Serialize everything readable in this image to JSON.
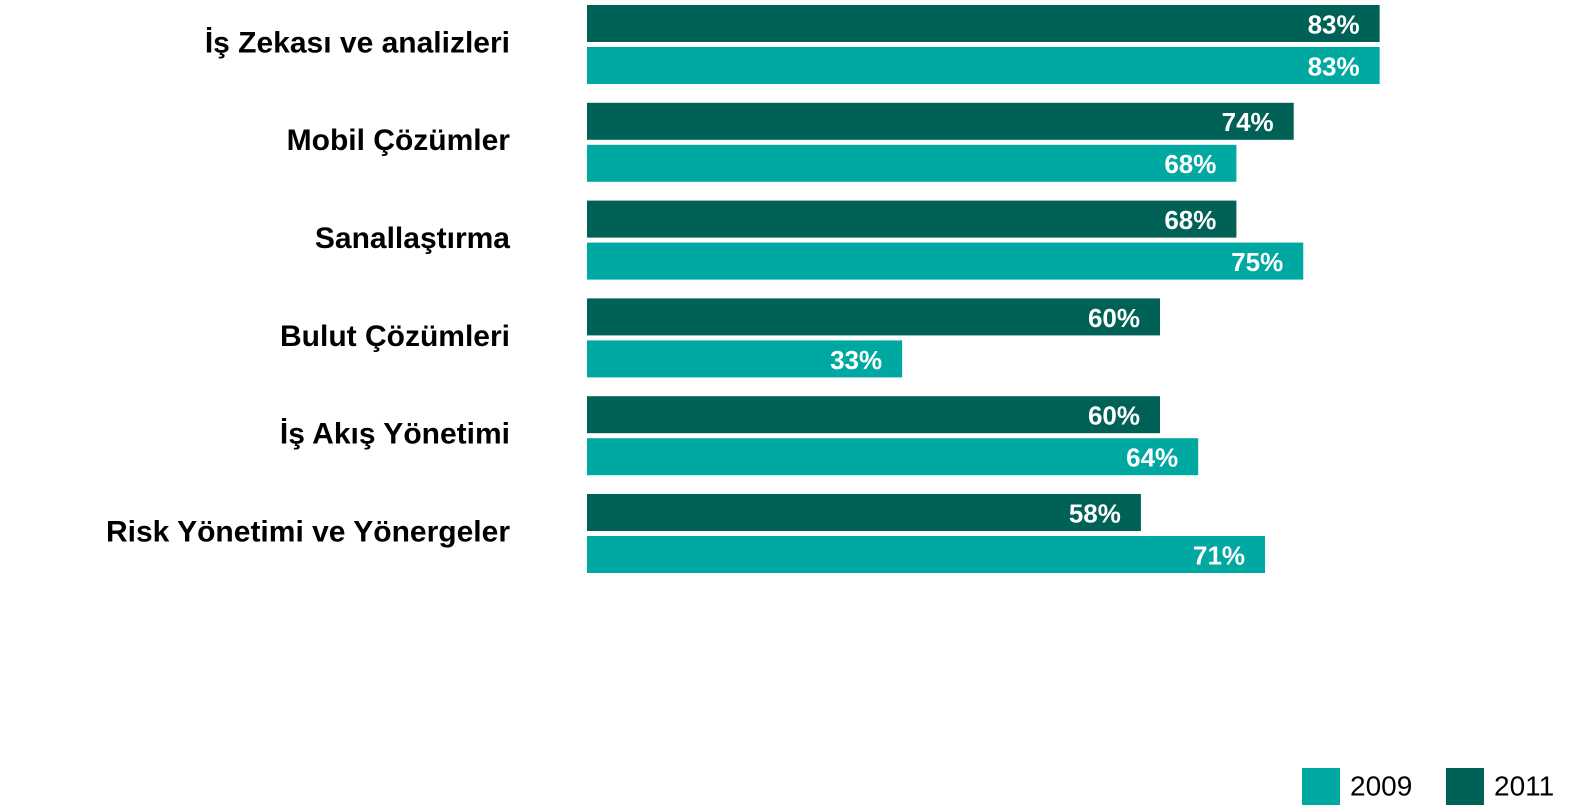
{
  "chart_data": {
    "type": "bar",
    "orientation": "horizontal",
    "categories": [
      "İş Zekası ve analizleri",
      "Mobil Çözümler",
      "Sanallaştırma",
      "Bulut Çözümleri",
      "İş Akış Yönetimi",
      "Risk Yönetimi ve Yönergeler"
    ],
    "series": [
      {
        "name": "2009",
        "color": "#00a8a2",
        "values": [
          83,
          68,
          75,
          33,
          64,
          71
        ],
        "value_labels": [
          "83%",
          "68%",
          "75%",
          "33%",
          "64%",
          "71%"
        ]
      },
      {
        "name": "2011",
        "color": "#006156",
        "values": [
          83,
          74,
          68,
          60,
          60,
          58
        ],
        "value_labels": [
          "83%",
          "74%",
          "68%",
          "60%",
          "60%",
          "58%"
        ]
      }
    ],
    "xlim": [
      0,
      100
    ],
    "legend": "bottom-right"
  }
}
